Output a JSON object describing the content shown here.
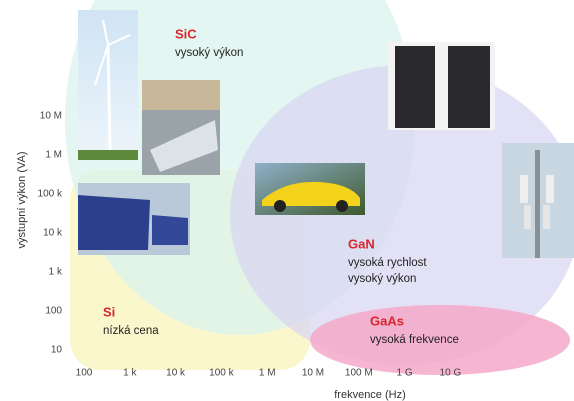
{
  "y_axis": {
    "label": "výstupní výkon (VA)",
    "ticks": [
      "10 M",
      "1 M",
      "100 k",
      "10 k",
      "1 k",
      "100",
      "10"
    ]
  },
  "x_axis": {
    "label": "frekvence (Hz)",
    "ticks": [
      "100",
      "1 k",
      "10 k",
      "100 k",
      "1 M",
      "10 M",
      "100 M",
      "1 G",
      "10 G"
    ]
  },
  "regions": [
    {
      "name": "SiC",
      "description": [
        "vysoký výkon"
      ]
    },
    {
      "name": "GaN",
      "description": [
        "vysoká rychlost",
        "vysoký výkon"
      ]
    },
    {
      "name": "Si",
      "description": [
        "nízká cena"
      ]
    },
    {
      "name": "GaAs",
      "description": [
        "vysoká frekvence"
      ]
    }
  ]
}
